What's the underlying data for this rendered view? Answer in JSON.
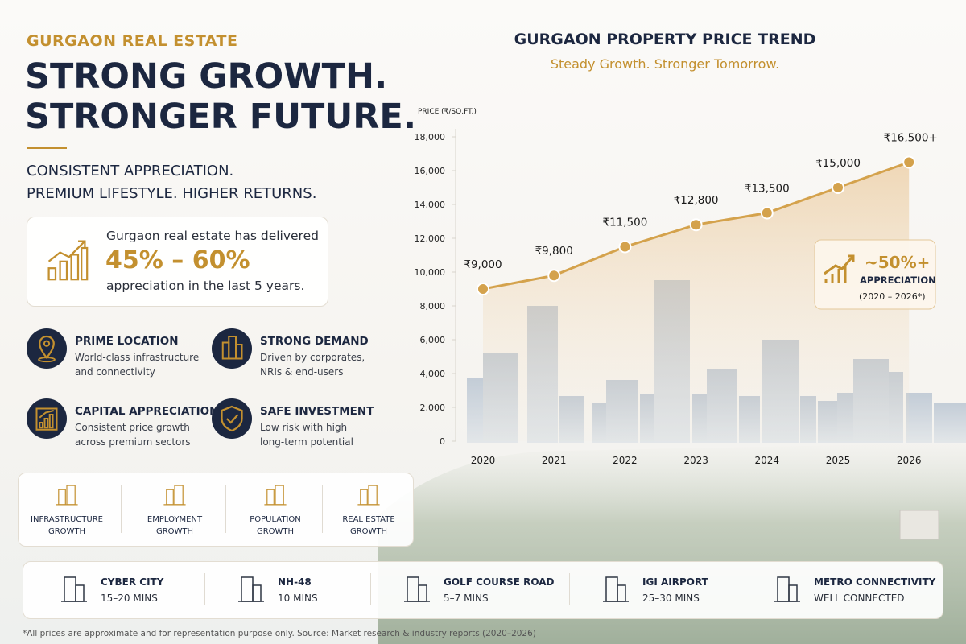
{
  "header": {
    "eyebrow": "GURGAON REAL ESTATE",
    "title_lines": [
      "STRONG GROWTH.",
      "STRONGER FUTURE."
    ],
    "tagline_lines": [
      "CONSISTENT APPRECIATION.",
      "PREMIUM LIFESTYLE. HIGHER RETURNS."
    ]
  },
  "highlight": {
    "intro": "Gurgaon real estate has delivered",
    "figure": "45% – 60%",
    "outro": "appreciation in the last 5 years."
  },
  "features": [
    {
      "title": "PRIME LOCATION",
      "lines": [
        "World-class infrastructure",
        "and connectivity"
      ]
    },
    {
      "title": "STRONG DEMAND",
      "lines": [
        "Driven by corporates,",
        "NRIs & end-users"
      ]
    },
    {
      "title": "CAPITAL APPRECIATION",
      "lines": [
        "Consistent price growth",
        "across premium sectors"
      ]
    },
    {
      "title": "SAFE INVESTMENT",
      "lines": [
        "Low risk with high",
        "long-term potential"
      ]
    }
  ],
  "growth_drivers": [
    [
      "INFRASTRUCTURE",
      "GROWTH"
    ],
    [
      "EMPLOYMENT",
      "GROWTH"
    ],
    [
      "POPULATION",
      "GROWTH"
    ],
    [
      "REAL ESTATE",
      "GROWTH"
    ]
  ],
  "connectivity": [
    {
      "place": "CYBER CITY",
      "time": "15–20 MINS"
    },
    {
      "place": "NH-48",
      "time": "10 MINS"
    },
    {
      "place": "GOLF COURSE ROAD",
      "time": "5–7 MINS"
    },
    {
      "place": "IGI AIRPORT",
      "time": "25–30 MINS"
    },
    {
      "place": "METRO CONNECTIVITY",
      "time": "WELL CONNECTED"
    }
  ],
  "footnote": "*All prices are approximate and for representation purpose only. Source: Market research & industry reports (2020–2026)",
  "chart_data": {
    "type": "line",
    "title": "GURGAON PROPERTY PRICE TREND",
    "subtitle": "Steady Growth. Stronger Tomorrow.",
    "y_label": "PRICE (₹/SQ.FT.)",
    "categories": [
      "2020",
      "2021",
      "2022",
      "2023",
      "2024",
      "2025",
      "2026"
    ],
    "values": [
      9000,
      9800,
      11500,
      12800,
      13500,
      15000,
      16500
    ],
    "value_labels": [
      "₹9,000",
      "₹9,800",
      "₹11,500",
      "₹12,800",
      "₹13,500",
      "₹15,000",
      "₹16,500+"
    ],
    "color": "#d4a24c",
    "ylim": [
      0,
      18000
    ],
    "yticks": [
      0,
      {
        "value": 2000,
        "label": "2,000"
      },
      {
        "value": 4000,
        "label": "4,000"
      },
      {
        "value": 6000,
        "label": "6,000"
      },
      {
        "value": 8000,
        "label": "8,000"
      },
      {
        "value": 10000,
        "label": "10,000"
      },
      {
        "value": 12000,
        "label": "12,000"
      },
      {
        "value": 14000,
        "label": "14,000"
      },
      {
        "value": 16000,
        "label": "16,000"
      },
      {
        "value": 18000,
        "label": "18,000"
      }
    ],
    "callout": {
      "value": "~50%+",
      "label": "APPRECIATION",
      "period": "(2020 – 2026*)"
    }
  }
}
